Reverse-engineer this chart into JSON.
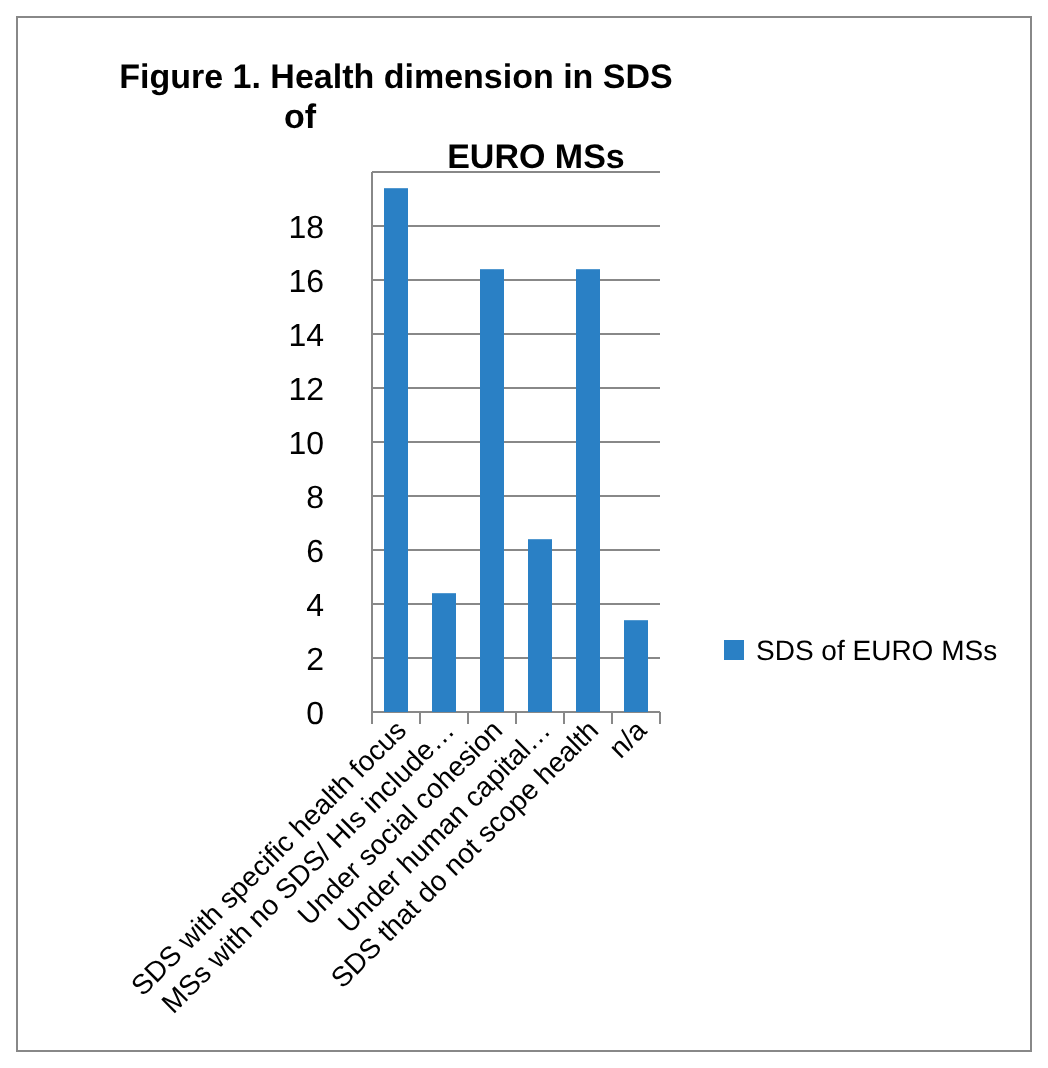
{
  "chart_data": {
    "type": "bar",
    "title": "Figure 1. Health dimension in SDS of EURO MSs",
    "categories": [
      "SDS with specific health focus",
      "MSs with no SDS/ HIs include…",
      "Under social cohesion",
      "Under human capital…",
      "SDS that do not scope  health",
      "n/a"
    ],
    "series": [
      {
        "name": "SDS of EURO MSs",
        "color": "#2a80c5",
        "values": [
          19.4,
          4.4,
          16.4,
          6.4,
          16.4,
          3.4
        ]
      }
    ],
    "ylim": [
      0,
      20
    ],
    "yticks": [
      0,
      2,
      4,
      6,
      8,
      10,
      12,
      14,
      16,
      18,
      {
        "value": 20,
        "label": null
      }
    ],
    "grid": "y",
    "legend": "right"
  }
}
